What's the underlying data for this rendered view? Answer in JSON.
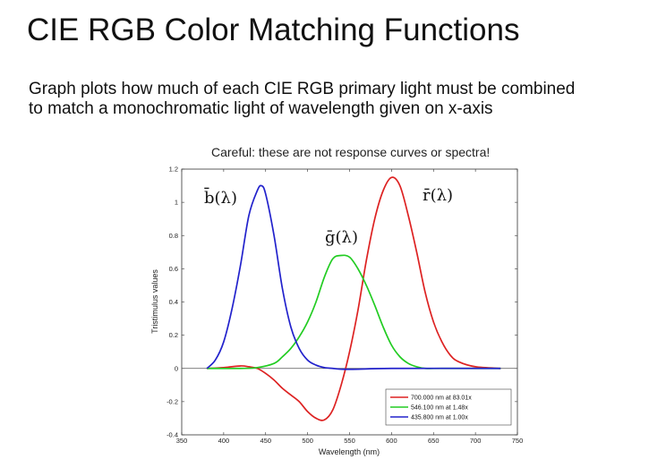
{
  "slide": {
    "title": "CIE RGB Color Matching Functions",
    "text_line1": "Graph plots how much of each CIE RGB primary light must be combined",
    "text_line2": "to match a monochromatic light of wavelength given on x-axis"
  },
  "chart_data": {
    "type": "line",
    "title": "Careful: these are not response curves or spectra!",
    "xlabel": "Wavelength (nm)",
    "ylabel": "Tristimulus values",
    "xlim": [
      350,
      750
    ],
    "ylim": [
      -0.4,
      1.2
    ],
    "xticks": [
      "350",
      "400",
      "450",
      "500",
      "550",
      "600",
      "650",
      "700",
      "750"
    ],
    "yticks": [
      "-0.4",
      "-0.2",
      "0",
      "0.2",
      "0.4",
      "0.6",
      "0.8",
      "1",
      "1.2"
    ],
    "legend_position": "bottom-right",
    "series": [
      {
        "name": "700.000 nm at 83.01x",
        "label": "r̄(λ)",
        "color": "#dd2222",
        "x": [
          380,
          400,
          420,
          430,
          440,
          450,
          460,
          470,
          480,
          490,
          500,
          510,
          520,
          530,
          540,
          550,
          560,
          570,
          580,
          590,
          600,
          610,
          620,
          630,
          640,
          650,
          660,
          670,
          680,
          700,
          730
        ],
        "y": [
          0.0,
          0.005,
          0.015,
          0.01,
          0.0,
          -0.03,
          -0.07,
          -0.12,
          -0.16,
          -0.2,
          -0.26,
          -0.3,
          -0.31,
          -0.25,
          -0.1,
          0.1,
          0.35,
          0.65,
          0.9,
          1.07,
          1.15,
          1.1,
          0.92,
          0.7,
          0.46,
          0.28,
          0.16,
          0.08,
          0.04,
          0.01,
          0.0
        ]
      },
      {
        "name": "546.100 nm at 1.48x",
        "label": "ḡ(λ)",
        "color": "#22cc22",
        "x": [
          380,
          420,
          440,
          460,
          470,
          480,
          490,
          500,
          510,
          520,
          530,
          540,
          550,
          560,
          570,
          580,
          590,
          600,
          610,
          620,
          630,
          640,
          660,
          700,
          730
        ],
        "y": [
          0.0,
          0.0,
          0.005,
          0.03,
          0.07,
          0.12,
          0.19,
          0.28,
          0.4,
          0.55,
          0.66,
          0.68,
          0.67,
          0.6,
          0.5,
          0.38,
          0.25,
          0.14,
          0.07,
          0.03,
          0.01,
          0.0,
          0.0,
          0.0,
          0.0
        ]
      },
      {
        "name": "435.800 nm at 1.00x",
        "label": "b̄(λ)",
        "color": "#2222cc",
        "x": [
          380,
          390,
          400,
          410,
          420,
          430,
          440,
          445,
          450,
          460,
          470,
          480,
          490,
          500,
          510,
          520,
          530,
          540,
          560,
          600,
          730
        ],
        "y": [
          0.0,
          0.05,
          0.16,
          0.36,
          0.62,
          0.92,
          1.07,
          1.1,
          1.05,
          0.8,
          0.48,
          0.25,
          0.12,
          0.05,
          0.02,
          0.005,
          0.0,
          -0.005,
          -0.005,
          0.0,
          0.0
        ]
      }
    ]
  }
}
